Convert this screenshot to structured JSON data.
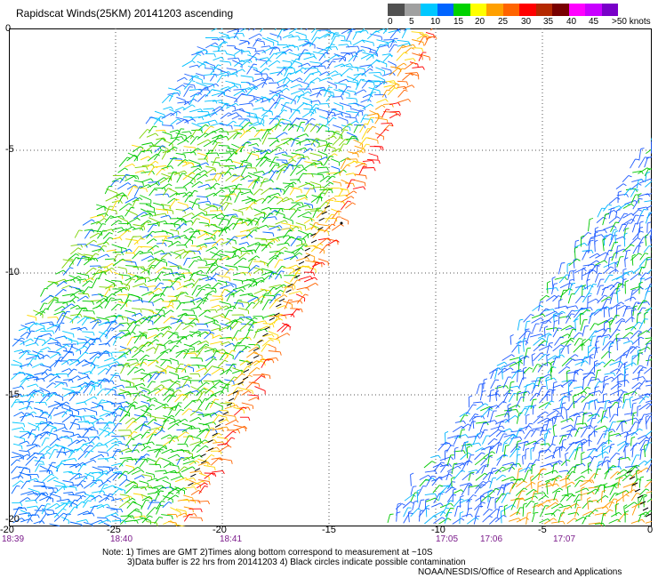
{
  "title": "Rapidscat Winds(25KM) 20141203 ascending",
  "legend": {
    "colors": [
      "#505050",
      "#a0a0a0",
      "#00c8ff",
      "#0064ff",
      "#00d200",
      "#ffff00",
      "#ffa000",
      "#ff6400",
      "#ff0000",
      "#b42800",
      "#780000",
      "#ff00ff",
      "#c800ff",
      "#7800c8"
    ],
    "labels": [
      "0",
      "5",
      "10",
      "15",
      "20",
      "25",
      "30",
      "35",
      "40",
      "45",
      ">50 knots"
    ]
  },
  "axes": {
    "y_labels": [
      "0",
      "-5",
      "-10",
      "-15",
      "-20"
    ],
    "x_labels": [
      "-20",
      "-25",
      "-20",
      "-15",
      "-10",
      "-5",
      "0"
    ]
  },
  "times": [
    "18:39",
    "18:40",
    "18:41",
    "17:05",
    "17:06",
    "17:07"
  ],
  "notes": {
    "line1": "Note: 1) Times are GMT 2)Times along bottom correspond to measurement at ~10S",
    "line2": "3)Data buffer is 22 hrs from 20141203 4) Black circles indicate possible contamination",
    "line3": "NOAA/NESDIS/Office of Research and Applications"
  }
}
